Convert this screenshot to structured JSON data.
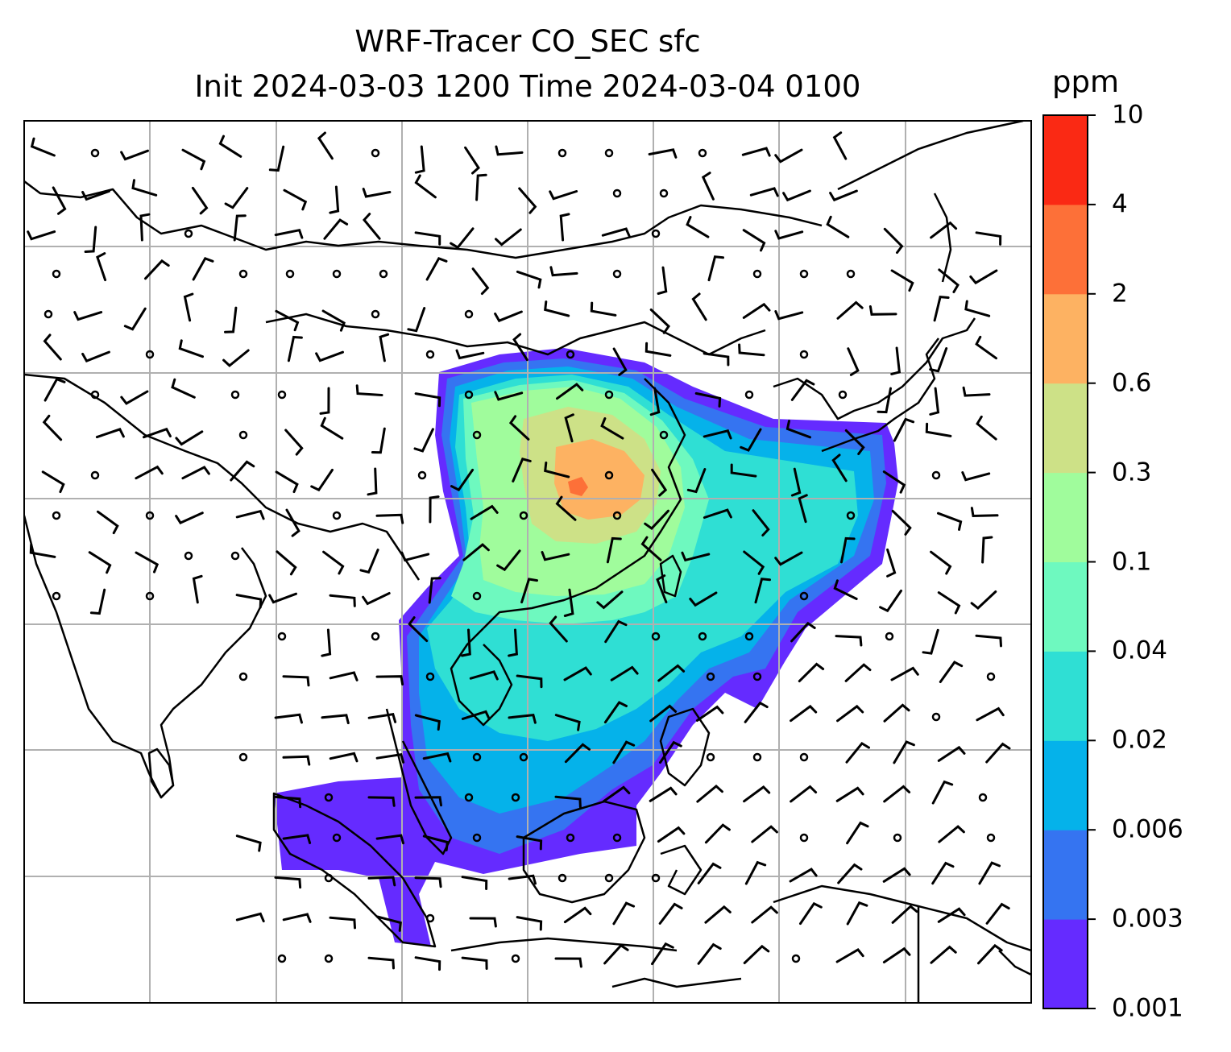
{
  "title": {
    "line1": "WRF-Tracer CO_SEC sfc",
    "line2": "Init 2024-03-03 1200 Time 2024-03-04 0100"
  },
  "colorbar": {
    "unit": "ppm",
    "levels": [
      "0.001",
      "0.003",
      "0.006",
      "0.02",
      "0.04",
      "0.1",
      "0.3",
      "0.6",
      "2",
      "4",
      "10"
    ],
    "colors": [
      "#652bff",
      "#3574f1",
      "#05b2ea",
      "#2fdfd4",
      "#6ef9bf",
      "#a0fc9c",
      "#cde187",
      "#fdb262",
      "#fd7038",
      "#fa2914"
    ]
  },
  "map": {
    "field": "CO_SEC surface tracer concentration with wind barbs",
    "gridlines": true,
    "plume_levels": {
      "outer": "0.001",
      "mid": "0.02",
      "core": "0.1",
      "peak": "2"
    }
  }
}
